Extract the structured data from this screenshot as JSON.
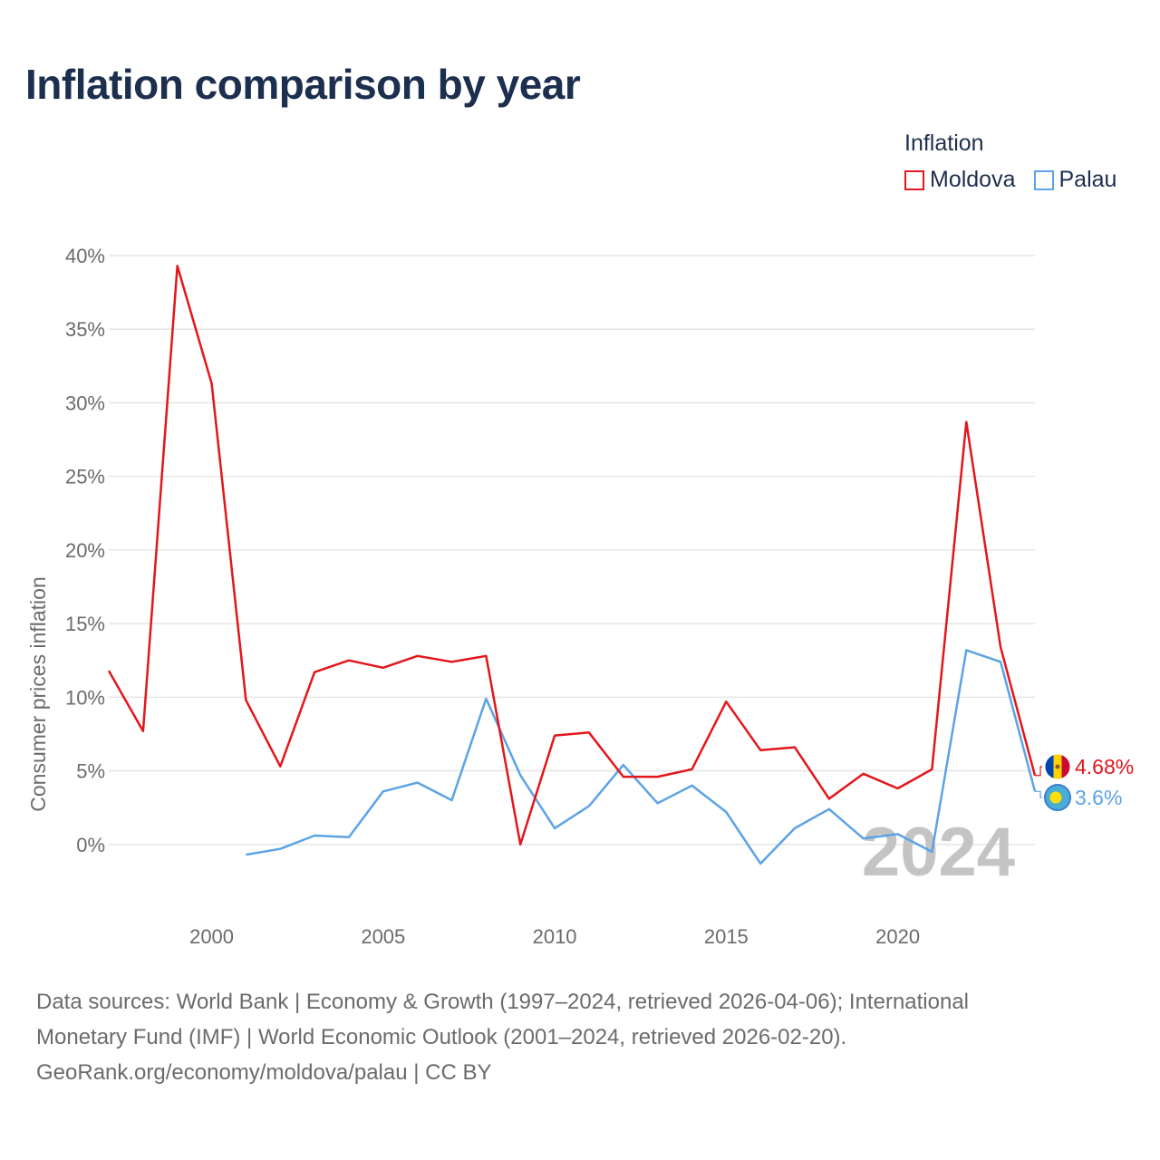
{
  "title": "Inflation comparison by year",
  "legend": {
    "title": "Inflation",
    "items": [
      {
        "name": "Moldova",
        "color": "#e3161b"
      },
      {
        "name": "Palau",
        "color": "#5ba3e6"
      }
    ]
  },
  "footer": {
    "line1": "Data sources: World Bank | Economy & Growth (1997–2024, retrieved 2026-04-06); International",
    "line2": "Monetary Fund (IMF) | World Economic Outlook (2001–2024, retrieved 2026-02-20).",
    "line3": "GeoRank.org/economy/moldova/palau | CC BY"
  },
  "chart_data": {
    "type": "line",
    "title": "Inflation comparison by year",
    "xlabel": "",
    "ylabel": "Consumer prices inflation",
    "xlim": [
      1997,
      2024
    ],
    "ylim": [
      -5,
      40
    ],
    "yticks": [
      0,
      5,
      10,
      15,
      20,
      25,
      30,
      35,
      40
    ],
    "ytick_labels": [
      "0%",
      "5%",
      "10%",
      "15%",
      "20%",
      "25%",
      "30%",
      "35%",
      "40%"
    ],
    "xticks": [
      2000,
      2005,
      2010,
      2015,
      2020
    ],
    "xtick_labels": [
      "2000",
      "2005",
      "2010",
      "2015",
      "2020"
    ],
    "grid": true,
    "year_watermark": "2024",
    "series": [
      {
        "name": "Moldova",
        "color": "#e3161b",
        "end_label": "4.68%",
        "points": [
          [
            1997,
            11.8
          ],
          [
            1998,
            7.7
          ],
          [
            1999,
            39.3
          ],
          [
            2000,
            31.3
          ],
          [
            2001,
            9.8
          ],
          [
            2002,
            5.3
          ],
          [
            2003,
            11.7
          ],
          [
            2004,
            12.5
          ],
          [
            2005,
            12.0
          ],
          [
            2006,
            12.8
          ],
          [
            2007,
            12.4
          ],
          [
            2008,
            12.8
          ],
          [
            2009,
            0.0
          ],
          [
            2010,
            7.4
          ],
          [
            2011,
            7.6
          ],
          [
            2012,
            4.6
          ],
          [
            2013,
            4.6
          ],
          [
            2014,
            5.1
          ],
          [
            2015,
            9.7
          ],
          [
            2016,
            6.4
          ],
          [
            2017,
            6.6
          ],
          [
            2018,
            3.1
          ],
          [
            2019,
            4.8
          ],
          [
            2020,
            3.8
          ],
          [
            2021,
            5.1
          ],
          [
            2022,
            28.7
          ],
          [
            2023,
            13.4
          ],
          [
            2024,
            4.68
          ]
        ]
      },
      {
        "name": "Palau",
        "color": "#5ba3e6",
        "end_label": "3.6%",
        "points": [
          [
            2001,
            -0.7
          ],
          [
            2002,
            -0.3
          ],
          [
            2003,
            0.6
          ],
          [
            2004,
            0.5
          ],
          [
            2005,
            3.6
          ],
          [
            2006,
            4.2
          ],
          [
            2007,
            3.0
          ],
          [
            2008,
            9.9
          ],
          [
            2009,
            4.7
          ],
          [
            2010,
            1.1
          ],
          [
            2011,
            2.6
          ],
          [
            2012,
            5.4
          ],
          [
            2013,
            2.8
          ],
          [
            2014,
            4.0
          ],
          [
            2015,
            2.2
          ],
          [
            2016,
            -1.3
          ],
          [
            2017,
            1.1
          ],
          [
            2018,
            2.4
          ],
          [
            2019,
            0.4
          ],
          [
            2020,
            0.7
          ],
          [
            2021,
            -0.5
          ],
          [
            2022,
            13.2
          ],
          [
            2023,
            12.4
          ],
          [
            2024,
            3.6
          ]
        ]
      }
    ]
  }
}
